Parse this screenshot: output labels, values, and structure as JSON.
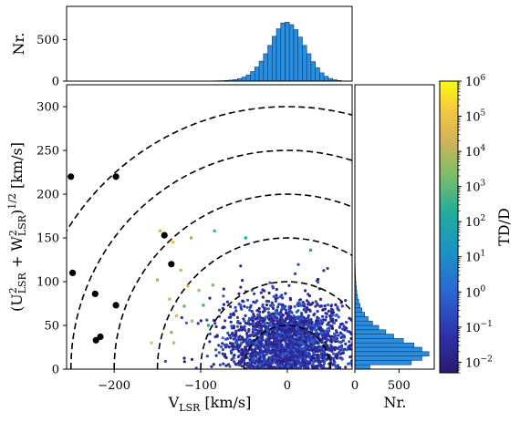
{
  "chart_data": {
    "type": "scatter",
    "main": {
      "xlabel": "V",
      "xlabel_sub": "LSR",
      "xlabel_unit": " [km/s]",
      "ylabel": "(U²LSR + W²LSR)1/2 [km/s]",
      "xlim": [
        -255,
        75
      ],
      "ylim": [
        0,
        325
      ],
      "xticks": [
        -200,
        -100,
        0
      ],
      "xtick_labels": [
        "−200",
        "−100",
        "0"
      ],
      "yticks": [
        0,
        50,
        100,
        150,
        200,
        250,
        300
      ],
      "ytick_labels": [
        "0",
        "50",
        "100",
        "150",
        "200",
        "250",
        "300"
      ],
      "circles_total_velocity": [
        50,
        100,
        150,
        200,
        250,
        300
      ],
      "colorbar_quantity": "TD/D",
      "black_points": [
        {
          "x": -250,
          "y": 220
        },
        {
          "x": -248,
          "y": 110
        },
        {
          "x": -198,
          "y": 220
        },
        {
          "x": -142,
          "y": 153
        },
        {
          "x": -134,
          "y": 120
        },
        {
          "x": -222,
          "y": 86
        },
        {
          "x": -198,
          "y": 73
        },
        {
          "x": -216,
          "y": 37
        },
        {
          "x": -221,
          "y": 33
        }
      ],
      "high_td_points": [
        {
          "x": -147,
          "y": 158,
          "td": 20000
        },
        {
          "x": -132,
          "y": 145,
          "td": 60000
        },
        {
          "x": -111,
          "y": 150,
          "td": 3000
        },
        {
          "x": -84,
          "y": 158,
          "td": 500
        },
        {
          "x": -48,
          "y": 150,
          "td": 100
        },
        {
          "x": -150,
          "y": 102,
          "td": 5000
        },
        {
          "x": -123,
          "y": 113,
          "td": 30000
        },
        {
          "x": -115,
          "y": 95,
          "td": 40000
        },
        {
          "x": -102,
          "y": 90,
          "td": 8000
        },
        {
          "x": -86,
          "y": 96,
          "td": 2000
        },
        {
          "x": -136,
          "y": 80,
          "td": 20000
        },
        {
          "x": -119,
          "y": 72,
          "td": 1000
        },
        {
          "x": -110,
          "y": 55,
          "td": 10000
        },
        {
          "x": -134,
          "y": 42,
          "td": 3000
        },
        {
          "x": -131,
          "y": 30,
          "td": 20000
        },
        {
          "x": -157,
          "y": 30,
          "td": 100000
        },
        {
          "x": -97,
          "y": 73,
          "td": 300
        },
        {
          "x": -128,
          "y": 61,
          "td": 50000
        },
        {
          "x": -91,
          "y": 50,
          "td": 200
        },
        {
          "x": 27,
          "y": 136,
          "td": 50
        }
      ],
      "cloud": {
        "center_x": 0,
        "center_y": 30,
        "spread_x": 35,
        "spread_y": 25,
        "n_points": 2200,
        "td_range": [
          0.01,
          1
        ]
      }
    },
    "top_histogram": {
      "ylabel": "Nr.",
      "ylim": [
        0,
        900
      ],
      "yticks": [
        0,
        500
      ],
      "ytick_labels": [
        "0",
        "500"
      ],
      "bin_width": 5,
      "bins": [
        {
          "x": -90,
          "n": 2
        },
        {
          "x": -85,
          "n": 3
        },
        {
          "x": -80,
          "n": 4
        },
        {
          "x": -75,
          "n": 5
        },
        {
          "x": -70,
          "n": 8
        },
        {
          "x": -65,
          "n": 12
        },
        {
          "x": -60,
          "n": 18
        },
        {
          "x": -55,
          "n": 30
        },
        {
          "x": -50,
          "n": 48
        },
        {
          "x": -45,
          "n": 75
        },
        {
          "x": -40,
          "n": 115
        },
        {
          "x": -35,
          "n": 170
        },
        {
          "x": -30,
          "n": 240
        },
        {
          "x": -25,
          "n": 330
        },
        {
          "x": -20,
          "n": 430
        },
        {
          "x": -15,
          "n": 540
        },
        {
          "x": -10,
          "n": 630
        },
        {
          "x": -5,
          "n": 700
        },
        {
          "x": 0,
          "n": 710
        },
        {
          "x": 5,
          "n": 680
        },
        {
          "x": 10,
          "n": 620
        },
        {
          "x": 15,
          "n": 530
        },
        {
          "x": 20,
          "n": 430
        },
        {
          "x": 25,
          "n": 330
        },
        {
          "x": 30,
          "n": 235
        },
        {
          "x": 35,
          "n": 160
        },
        {
          "x": 40,
          "n": 100
        },
        {
          "x": 45,
          "n": 58
        },
        {
          "x": 50,
          "n": 32
        },
        {
          "x": 55,
          "n": 16
        },
        {
          "x": 60,
          "n": 8
        }
      ]
    },
    "right_histogram": {
      "xlabel": "Nr.",
      "xlim": [
        0,
        900
      ],
      "xticks": [
        0,
        500
      ],
      "xtick_labels": [
        "0",
        "500"
      ],
      "bin_height": 5,
      "bins": [
        {
          "y": 0,
          "n": 170
        },
        {
          "y": 5,
          "n": 640
        },
        {
          "y": 10,
          "n": 760
        },
        {
          "y": 15,
          "n": 840
        },
        {
          "y": 20,
          "n": 760
        },
        {
          "y": 25,
          "n": 670
        },
        {
          "y": 30,
          "n": 550
        },
        {
          "y": 35,
          "n": 440
        },
        {
          "y": 40,
          "n": 350
        },
        {
          "y": 45,
          "n": 270
        },
        {
          "y": 50,
          "n": 200
        },
        {
          "y": 55,
          "n": 150
        },
        {
          "y": 60,
          "n": 110
        },
        {
          "y": 65,
          "n": 80
        },
        {
          "y": 70,
          "n": 58
        },
        {
          "y": 75,
          "n": 42
        },
        {
          "y": 80,
          "n": 30
        },
        {
          "y": 85,
          "n": 22
        },
        {
          "y": 90,
          "n": 16
        },
        {
          "y": 95,
          "n": 12
        },
        {
          "y": 100,
          "n": 9
        },
        {
          "y": 105,
          "n": 7
        },
        {
          "y": 110,
          "n": 5
        },
        {
          "y": 115,
          "n": 4
        }
      ]
    },
    "colorbar": {
      "label": "TD/D",
      "scale": "log",
      "range": [
        0.005,
        1000000
      ],
      "tick_exponents": [
        "−2",
        "−1",
        "0",
        "1",
        "2",
        "3",
        "4",
        "5",
        "6"
      ]
    }
  }
}
